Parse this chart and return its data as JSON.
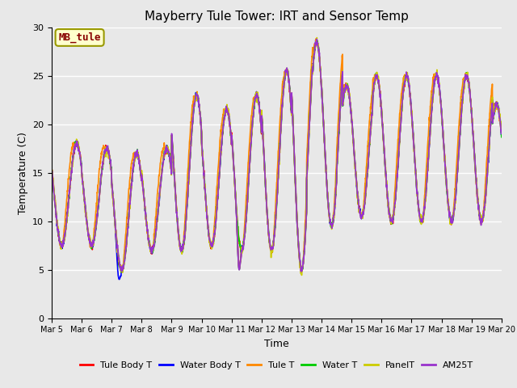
{
  "title": "Mayberry Tule Tower: IRT and Sensor Temp",
  "xlabel": "Time",
  "ylabel": "Temperature (C)",
  "ylim": [
    0,
    30
  ],
  "background_color": "#e8e8e8",
  "plot_bg": "#e8e8e8",
  "fig_bg": "#e8e8e8",
  "series_names": [
    "Tule Body T",
    "Water Body T",
    "Tule T",
    "Water T",
    "PanelT",
    "AM25T"
  ],
  "series_colors": [
    "#ff0000",
    "#0000ff",
    "#ff8800",
    "#00cc00",
    "#cccc00",
    "#9933cc"
  ],
  "legend_label": "MB_tule",
  "legend_label_color": "#880000",
  "legend_bg": "#ffffcc",
  "legend_edge": "#999900",
  "tick_labels": [
    "Mar 5",
    "Mar 6",
    "Mar 7",
    "Mar 8",
    "Mar 9",
    "Mar 10",
    "Mar 11",
    "Mar 12",
    "Mar 13",
    "Mar 14",
    "Mar 15",
    "Mar 16",
    "Mar 17",
    "Mar 18",
    "Mar 19",
    "Mar 20"
  ],
  "yticks": [
    0,
    5,
    10,
    15,
    20,
    25,
    30
  ],
  "lw": 1.2
}
